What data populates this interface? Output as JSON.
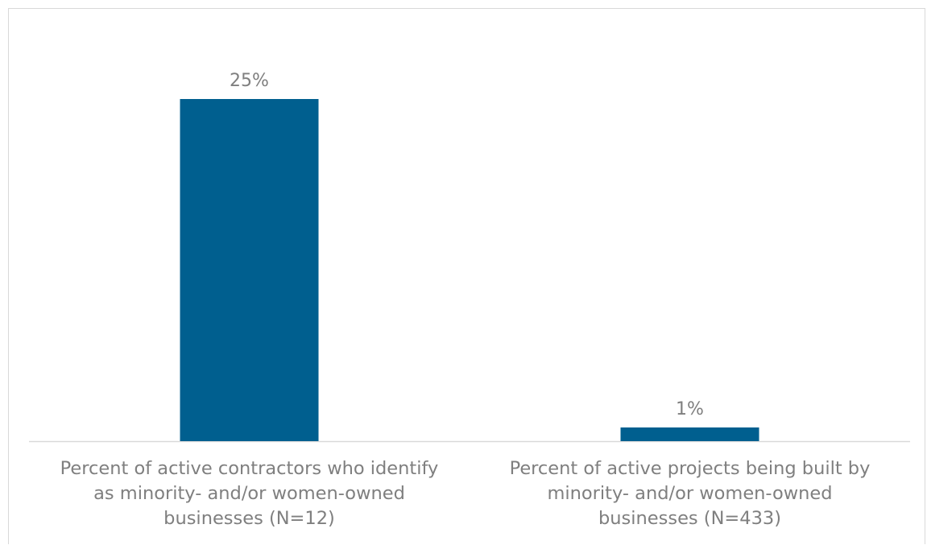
{
  "chart_data": {
    "type": "bar",
    "categories": [
      [
        "Percent of active contractors who identify",
        "as minority- and/or women-owned",
        "businesses (N=12)"
      ],
      [
        "Percent of active projects being built by",
        "minority- and/or women-owned",
        "businesses (N=433)"
      ]
    ],
    "values": [
      25,
      1
    ],
    "value_labels": [
      "25%",
      "1%"
    ],
    "value_unit": "%",
    "ylim": [
      0,
      25
    ],
    "bar_color": "#005f8f",
    "grid": false,
    "legend": "none"
  }
}
